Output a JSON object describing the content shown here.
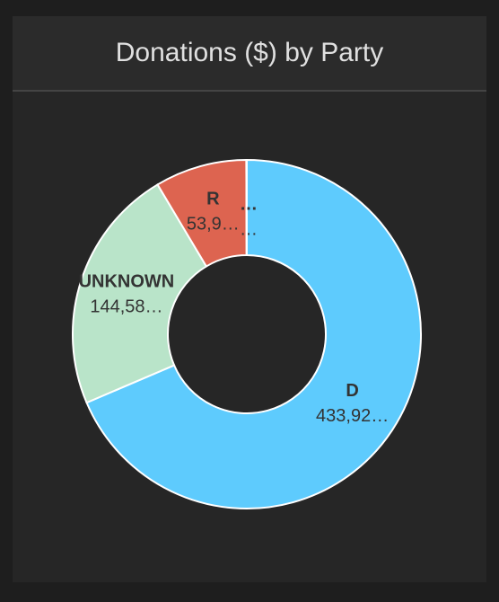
{
  "chart_data": {
    "type": "pie",
    "title": "Donations ($) by Party",
    "categories": [
      "D",
      "UNKNOWN",
      "R",
      "…"
    ],
    "values": [
      433920,
      144580,
      53900,
      300
    ],
    "value_labels": [
      "433,92…",
      "144,58…",
      "53,9…",
      "…"
    ],
    "colors": [
      "#5ecbfd",
      "#b9e4c9",
      "#dd6450",
      "#f2c94c"
    ],
    "donut": true
  }
}
